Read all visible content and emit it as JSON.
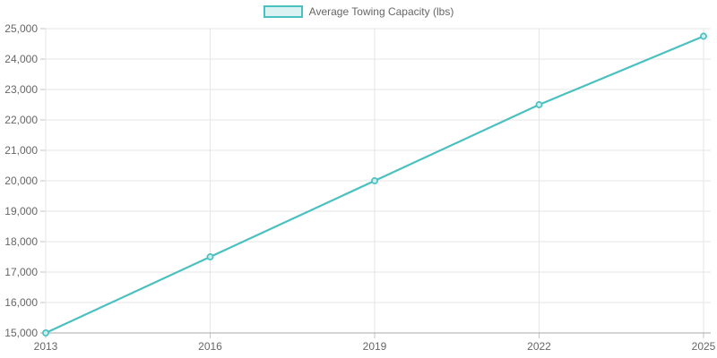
{
  "legend": {
    "label": "Average Towing Capacity (lbs)"
  },
  "chart_data": {
    "type": "line",
    "title": "",
    "xlabel": "",
    "ylabel": "",
    "categories": [
      "2013",
      "2016",
      "2019",
      "2022",
      "2025"
    ],
    "series": [
      {
        "name": "Average Towing Capacity (lbs)",
        "values": [
          15000,
          17500,
          20000,
          22500,
          24750
        ]
      }
    ],
    "ylim": [
      15000,
      25000
    ],
    "y_tick_step": 1000,
    "y_tick_labels": [
      "15,000",
      "16,000",
      "17,000",
      "18,000",
      "19,000",
      "20,000",
      "21,000",
      "22,000",
      "23,000",
      "24,000",
      "25,000"
    ],
    "grid": true,
    "legend_position": "top-center",
    "colors": {
      "line": "#4bc0c0",
      "point_fill": "#cdeeee",
      "legend_fill": "#dbf2f2",
      "grid": "#e6e6e6",
      "axis_line": "#a8a8a8",
      "tick_mark": "#c6c6c6",
      "label_text": "#666666",
      "background": "#ffffff"
    }
  }
}
